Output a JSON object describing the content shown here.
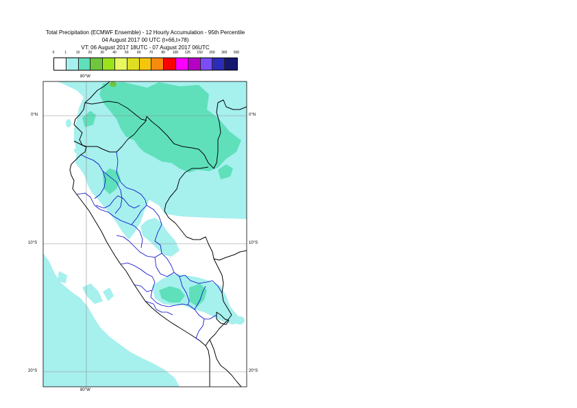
{
  "title": {
    "line1": "Total Precipitation (ECMWF Ensemble) - 12 Hourly Accumulation - 95th Percentile",
    "line2": "04 August 2017 00 UTC (t+66,t+78)",
    "line3": "VT: 06 August 2017 18UTC - 07 August 2017 06UTC"
  },
  "legend": {
    "boundaries": [
      "0",
      "1",
      "10",
      "20",
      "30",
      "40",
      "50",
      "60",
      "70",
      "80",
      "100",
      "125",
      "150",
      "200",
      "300",
      "500"
    ],
    "colors": [
      "#ffffff",
      "#a6f0ee",
      "#5fe0bb",
      "#6dc63d",
      "#9ae21a",
      "#e8f863",
      "#dede24",
      "#f6c50c",
      "#f88a0e",
      "#ff0000",
      "#ff00ff",
      "#b700c6",
      "#7b4df5",
      "#2c2cb9",
      "#141870"
    ]
  },
  "axes": {
    "lon_top": "80°W",
    "lon_bottom": "80°W",
    "lat_0_left": "0°N",
    "lat_0_right": "0°N",
    "lat_10_left": "10°S",
    "lat_10_right": "10°S",
    "lat_20_left": "20°S",
    "lat_20_right": "20°S"
  },
  "colors": {
    "light_rain": "#a6f0ee",
    "moderate_rain": "#5fe0bb",
    "green_rain": "#6dc63d",
    "coast": "#000000",
    "regions": "#0000c8",
    "grid": "#8c8c8c"
  }
}
